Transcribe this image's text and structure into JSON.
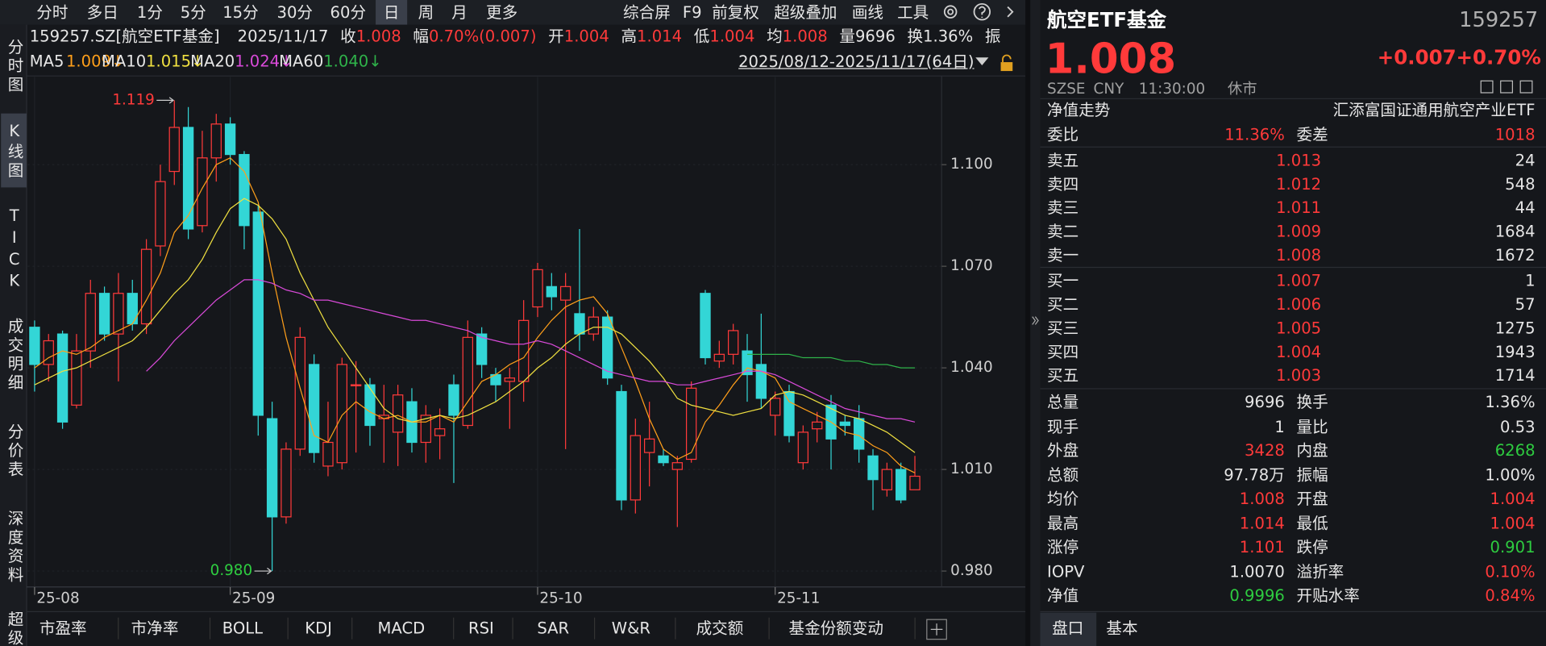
{
  "toolbar": {
    "tabs": [
      "分时",
      "多日",
      "1分",
      "5分",
      "15分",
      "30分",
      "60分",
      "日",
      "周",
      "月",
      "更多"
    ],
    "active": 7,
    "tools": [
      "综合屏",
      "F9",
      "前复权",
      "超级叠加",
      "画线",
      "工具"
    ]
  },
  "side_nav": {
    "items": [
      "分时图",
      "K线图",
      "TICK",
      "成交明细",
      "分价表",
      "深度资料",
      "超级"
    ],
    "active": 1
  },
  "info": {
    "code": "159257.SZ[航空ETF基金]",
    "date": "2025/11/17",
    "items": [
      {
        "label": "收",
        "value": "1.008",
        "color": "#ff3a3a"
      },
      {
        "label": "幅",
        "value": "0.70%(0.007)",
        "color": "#ff3a3a"
      },
      {
        "label": "开",
        "value": "1.004",
        "color": "#ff3a3a"
      },
      {
        "label": "高",
        "value": "1.014",
        "color": "#ff3a3a"
      },
      {
        "label": "低",
        "value": "1.004",
        "color": "#ff3a3a"
      },
      {
        "label": "均",
        "value": "1.008",
        "color": "#ff3a3a"
      },
      {
        "label": "量",
        "value": "9696",
        "color": "#e6e6e6"
      },
      {
        "label": "换",
        "value": "1.36%",
        "color": "#e6e6e6"
      },
      {
        "label": "振"
      }
    ],
    "range": "2025/08/12-2025/11/17(64日)"
  },
  "chart_data": {
    "type": "candlestick",
    "categories": [
      "25-08",
      null,
      null,
      null,
      null,
      null,
      null,
      null,
      null,
      null,
      null,
      null,
      null,
      null,
      "25-09",
      null,
      null,
      null,
      null,
      null,
      null,
      null,
      null,
      null,
      null,
      null,
      null,
      null,
      null,
      null,
      null,
      null,
      null,
      null,
      null,
      null,
      "25-10",
      null,
      null,
      null,
      null,
      null,
      null,
      null,
      null,
      null,
      null,
      null,
      null,
      null,
      null,
      null,
      null,
      "25-11",
      null,
      null,
      null,
      null,
      null,
      null,
      null,
      null,
      null,
      null
    ],
    "open": [
      1.052,
      1.041,
      1.05,
      1.029,
      1.045,
      1.062,
      1.05,
      1.062,
      1.053,
      1.076,
      1.098,
      1.111,
      1.082,
      1.102,
      1.112,
      1.103,
      1.086,
      1.025,
      0.996,
      1.016,
      1.041,
      1.011,
      1.012,
      1.035,
      1.035,
      1.025,
      1.021,
      1.03,
      1.018,
      1.02,
      1.035,
      1.023,
      1.05,
      1.038,
      1.036,
      1.036,
      1.058,
      1.064,
      1.06,
      1.056,
      1.05,
      1.055,
      1.033,
      1.001,
      1.015,
      1.014,
      1.01,
      1.013,
      1.062,
      1.042,
      1.044,
      1.045,
      1.041,
      1.026,
      1.033,
      1.012,
      1.022,
      1.029,
      1.024,
      1.025,
      1.014,
      1.004,
      1.01,
      1.004
    ],
    "high": [
      1.054,
      1.05,
      1.051,
      1.05,
      1.066,
      1.064,
      1.068,
      1.066,
      1.078,
      1.1,
      1.119,
      1.117,
      1.11,
      1.115,
      1.114,
      1.104,
      1.088,
      1.03,
      1.018,
      1.052,
      1.044,
      1.03,
      1.043,
      1.042,
      1.037,
      1.035,
      1.035,
      1.034,
      1.029,
      1.028,
      1.038,
      1.054,
      1.052,
      1.04,
      1.04,
      1.06,
      1.071,
      1.068,
      1.068,
      1.081,
      1.058,
      1.057,
      1.035,
      1.025,
      1.03,
      1.016,
      1.014,
      1.036,
      1.063,
      1.048,
      1.053,
      1.05,
      1.056,
      1.033,
      1.035,
      1.023,
      1.027,
      1.032,
      1.026,
      1.029,
      1.016,
      1.012,
      1.012,
      1.014
    ],
    "low": [
      1.033,
      1.036,
      1.022,
      1.028,
      1.04,
      1.048,
      1.036,
      1.051,
      1.05,
      1.073,
      1.094,
      1.078,
      1.08,
      1.095,
      1.1,
      1.075,
      1.02,
      0.98,
      0.994,
      1.014,
      1.012,
      1.008,
      1.01,
      1.015,
      1.017,
      1.012,
      1.011,
      1.015,
      1.012,
      1.013,
      1.006,
      1.022,
      1.037,
      1.03,
      1.022,
      1.03,
      1.055,
      1.057,
      1.016,
      1.045,
      1.048,
      1.035,
      0.998,
      0.997,
      1.005,
      1.011,
      0.993,
      1.012,
      1.041,
      1.04,
      1.041,
      1.03,
      1.028,
      1.02,
      1.018,
      1.01,
      1.018,
      1.01,
      1.02,
      1.012,
      0.998,
      1.002,
      1.0,
      1.004
    ],
    "close": [
      1.041,
      1.048,
      1.024,
      1.045,
      1.062,
      1.05,
      1.062,
      1.053,
      1.075,
      1.095,
      1.111,
      1.081,
      1.102,
      1.112,
      1.103,
      1.082,
      1.026,
      0.996,
      1.016,
      1.049,
      1.015,
      1.018,
      1.041,
      1.035,
      1.023,
      1.026,
      1.032,
      1.018,
      1.026,
      1.022,
      1.026,
      1.049,
      1.041,
      1.035,
      1.037,
      1.054,
      1.069,
      1.061,
      1.064,
      1.05,
      1.055,
      1.037,
      1.001,
      1.02,
      1.019,
      1.012,
      1.012,
      1.034,
      1.043,
      1.044,
      1.051,
      1.038,
      1.031,
      1.031,
      1.02,
      1.021,
      1.024,
      1.019,
      1.023,
      1.016,
      1.007,
      1.01,
      1.001,
      1.008
    ],
    "up_color": "#ff3a3a",
    "down_color": "#33d6d6",
    "series": [
      {
        "name": "MA5",
        "label": "1.009↓",
        "color": "#ff9f1a",
        "values": [
          1.04,
          1.043,
          1.045,
          1.044,
          1.046,
          1.049,
          1.051,
          1.053,
          1.06,
          1.068,
          1.08,
          1.085,
          1.093,
          1.1,
          1.102,
          1.098,
          1.089,
          1.068,
          1.049,
          1.034,
          1.02,
          1.018,
          1.026,
          1.03,
          1.027,
          1.025,
          1.026,
          1.024,
          1.024,
          1.026,
          1.024,
          1.03,
          1.036,
          1.038,
          1.041,
          1.043,
          1.049,
          1.054,
          1.058,
          1.06,
          1.061,
          1.056,
          1.046,
          1.036,
          1.025,
          1.016,
          1.013,
          1.015,
          1.024,
          1.029,
          1.035,
          1.04,
          1.039,
          1.037,
          1.03,
          1.028,
          1.026,
          1.024,
          1.021,
          1.02,
          1.017,
          1.015,
          1.011,
          1.009
        ]
      },
      {
        "name": "MA10",
        "label": "1.015↓",
        "color": "#f0e040",
        "values": [
          1.035,
          1.037,
          1.039,
          1.04,
          1.042,
          1.044,
          1.046,
          1.048,
          1.052,
          1.057,
          1.062,
          1.066,
          1.072,
          1.08,
          1.087,
          1.09,
          1.088,
          1.084,
          1.078,
          1.068,
          1.06,
          1.052,
          1.046,
          1.04,
          1.034,
          1.028,
          1.025,
          1.024,
          1.025,
          1.026,
          1.025,
          1.026,
          1.028,
          1.03,
          1.033,
          1.036,
          1.04,
          1.043,
          1.047,
          1.05,
          1.052,
          1.052,
          1.05,
          1.046,
          1.042,
          1.037,
          1.031,
          1.029,
          1.028,
          1.027,
          1.026,
          1.027,
          1.028,
          1.032,
          1.033,
          1.032,
          1.03,
          1.028,
          1.026,
          1.025,
          1.023,
          1.021,
          1.018,
          1.015
        ]
      },
      {
        "name": "MA20",
        "label": "1.024↓",
        "color": "#d94ad9",
        "values": [
          null,
          null,
          null,
          null,
          null,
          null,
          null,
          null,
          1.039,
          1.043,
          1.048,
          1.052,
          1.056,
          1.06,
          1.063,
          1.066,
          1.066,
          1.065,
          1.063,
          1.062,
          1.06,
          1.06,
          1.059,
          1.058,
          1.057,
          1.056,
          1.055,
          1.054,
          1.054,
          1.053,
          1.052,
          1.051,
          1.049,
          1.048,
          1.047,
          1.047,
          1.048,
          1.047,
          1.045,
          1.043,
          1.041,
          1.039,
          1.038,
          1.037,
          1.036,
          1.036,
          1.035,
          1.035,
          1.036,
          1.037,
          1.038,
          1.039,
          1.039,
          1.038,
          1.036,
          1.034,
          1.032,
          1.03,
          1.028,
          1.027,
          1.026,
          1.025,
          1.025,
          1.024
        ]
      },
      {
        "name": "MA60",
        "label": "1.040↓",
        "color": "#2fb34a",
        "values": [
          null,
          null,
          null,
          null,
          null,
          null,
          null,
          null,
          null,
          null,
          null,
          null,
          null,
          null,
          null,
          null,
          null,
          null,
          null,
          null,
          null,
          null,
          null,
          null,
          null,
          null,
          null,
          null,
          null,
          null,
          null,
          null,
          null,
          null,
          null,
          null,
          null,
          null,
          null,
          null,
          null,
          null,
          null,
          null,
          null,
          null,
          null,
          null,
          null,
          null,
          null,
          1.044,
          1.044,
          1.044,
          1.044,
          1.043,
          1.043,
          1.043,
          1.042,
          1.042,
          1.041,
          1.041,
          1.04,
          1.04
        ]
      }
    ],
    "high_label": "1.119",
    "low_label": "0.980",
    "ylim": [
      0.9753,
      1.1259
    ],
    "yticks": [
      {
        "value": 0.98,
        "label": "0.980"
      },
      {
        "value": 1.01,
        "label": "1.010"
      },
      {
        "value": 1.04,
        "label": "1.040"
      },
      {
        "value": 1.07,
        "label": "1.070"
      },
      {
        "value": 1.1,
        "label": "1.100"
      }
    ],
    "grid": true
  },
  "indicator_tabs": [
    "市盈率",
    "市净率",
    "BOLL",
    "KDJ",
    "MACD",
    "RSI",
    "SAR",
    "W&R",
    "成交额",
    "基金份额变动"
  ],
  "quote": {
    "title": "航空ETF基金",
    "code": "159257",
    "price": "1.008",
    "change": "+0.007",
    "change_pct": "+0.70%",
    "meta": [
      "SZSE",
      "CNY",
      "11:30:00",
      "休市"
    ]
  },
  "nav_row": {
    "label": "净值走势",
    "fund": "汇添富国证通用航空产业ETF"
  },
  "ratio_row": [
    {
      "label": "委比",
      "value": "11.36%"
    },
    {
      "label": "委差",
      "value": "1018"
    }
  ],
  "asks": [
    {
      "label": "卖五",
      "price": "1.013",
      "volume": "24"
    },
    {
      "label": "卖四",
      "price": "1.012",
      "volume": "548"
    },
    {
      "label": "卖三",
      "price": "1.011",
      "volume": "44"
    },
    {
      "label": "卖二",
      "price": "1.009",
      "volume": "1684"
    },
    {
      "label": "卖一",
      "price": "1.008",
      "volume": "1672"
    }
  ],
  "bids": [
    {
      "label": "买一",
      "price": "1.007",
      "volume": "1"
    },
    {
      "label": "买二",
      "price": "1.006",
      "volume": "57"
    },
    {
      "label": "买三",
      "price": "1.005",
      "volume": "1275"
    },
    {
      "label": "买四",
      "price": "1.004",
      "volume": "1943"
    },
    {
      "label": "买五",
      "price": "1.003",
      "volume": "1714"
    }
  ],
  "stats": [
    {
      "label": "总量",
      "value": "9696",
      "color": "#e6e6e6"
    },
    {
      "label": "换手",
      "value": "1.36%",
      "color": "#e6e6e6"
    },
    {
      "label": "现手",
      "value": "1",
      "color": "#e6e6e6"
    },
    {
      "label": "量比",
      "value": "0.53",
      "color": "#e6e6e6"
    },
    {
      "label": "外盘",
      "value": "3428",
      "color": "#ff3a3a"
    },
    {
      "label": "内盘",
      "value": "6268",
      "color": "#2ecc40"
    },
    {
      "label": "总额",
      "value": "97.78万",
      "color": "#e6e6e6"
    },
    {
      "label": "振幅",
      "value": "1.00%",
      "color": "#e6e6e6"
    },
    {
      "label": "均价",
      "value": "1.008",
      "color": "#ff3a3a"
    },
    {
      "label": "开盘",
      "value": "1.004",
      "color": "#ff3a3a"
    },
    {
      "label": "最高",
      "value": "1.014",
      "color": "#ff3a3a"
    },
    {
      "label": "最低",
      "value": "1.004",
      "color": "#ff3a3a"
    },
    {
      "label": "涨停",
      "value": "1.101",
      "color": "#ff3a3a"
    },
    {
      "label": "跌停",
      "value": "0.901",
      "color": "#2ecc40"
    },
    {
      "label": "IOPV",
      "value": "1.0070",
      "color": "#e6e6e6"
    },
    {
      "label": "溢折率",
      "value": "0.10%",
      "color": "#ff3a3a"
    },
    {
      "label": "净值",
      "value": "0.9996",
      "color": "#2ecc40"
    },
    {
      "label": "开贴水率",
      "value": "0.84%",
      "color": "#ff3a3a"
    }
  ],
  "panel_tabs": [
    "盘口",
    "基本"
  ]
}
